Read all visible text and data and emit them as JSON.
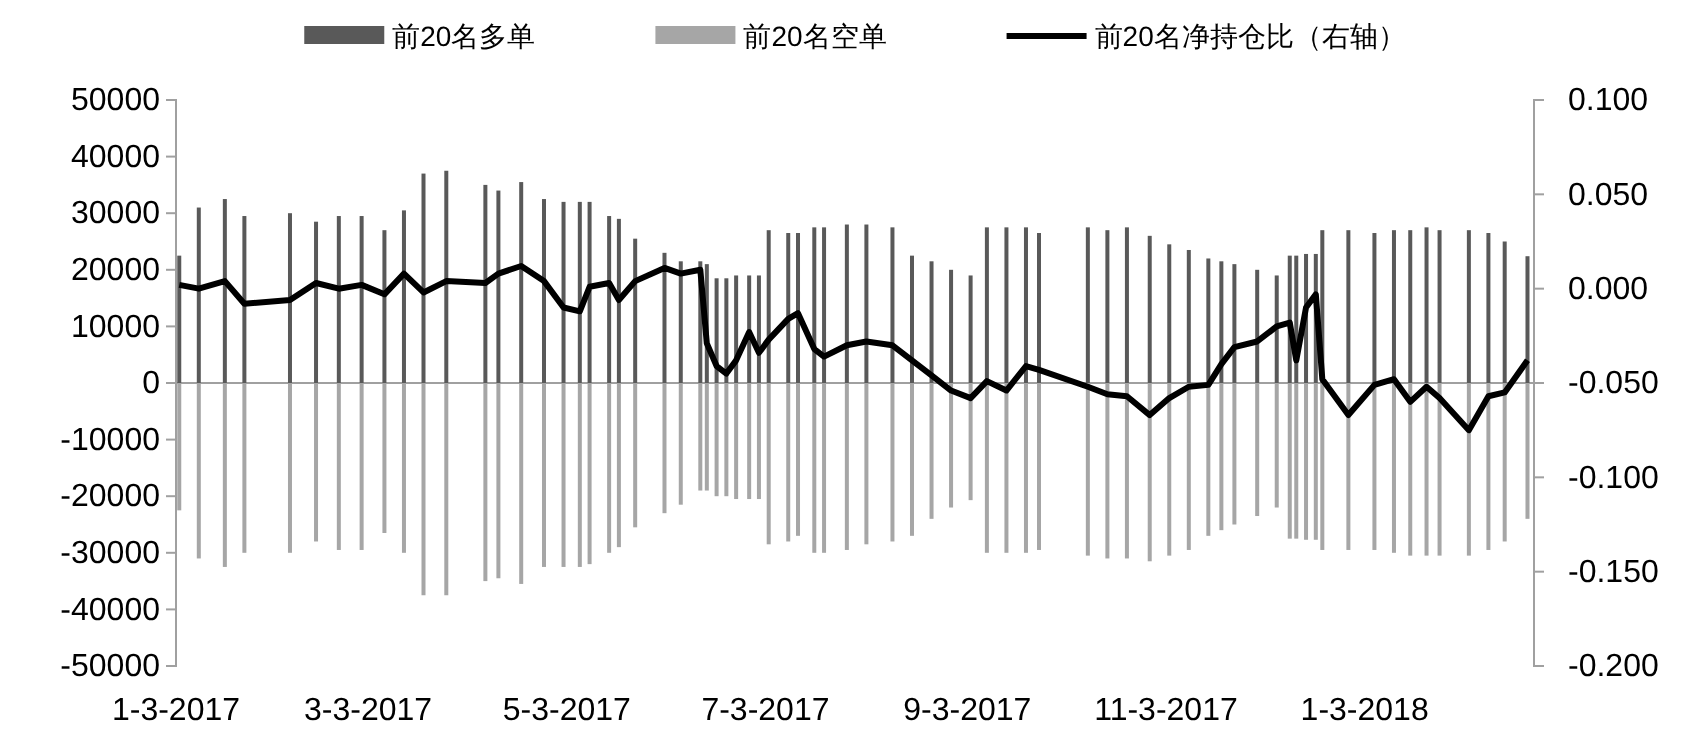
{
  "chart_data": {
    "type": "bar",
    "legend": "top",
    "x": [
      "2017-01-04",
      "2017-01-10",
      "2017-01-18",
      "2017-01-24",
      "2017-02-07",
      "2017-02-15",
      "2017-02-22",
      "2017-03-01",
      "2017-03-08",
      "2017-03-14",
      "2017-03-20",
      "2017-03-27",
      "2017-04-08",
      "2017-04-12",
      "2017-04-19",
      "2017-04-26",
      "2017-05-02",
      "2017-05-07",
      "2017-05-10",
      "2017-05-16",
      "2017-05-19",
      "2017-05-24",
      "2017-06-02",
      "2017-06-07",
      "2017-06-13",
      "2017-06-15",
      "2017-06-18",
      "2017-06-21",
      "2017-06-24",
      "2017-06-28",
      "2017-07-01",
      "2017-07-04",
      "2017-07-10",
      "2017-07-13",
      "2017-07-18",
      "2017-07-21",
      "2017-07-28",
      "2017-08-03",
      "2017-08-11",
      "2017-08-17",
      "2017-08-23",
      "2017-08-29",
      "2017-09-04",
      "2017-09-09",
      "2017-09-15",
      "2017-09-21",
      "2017-09-25",
      "2017-10-10",
      "2017-10-16",
      "2017-10-22",
      "2017-10-29",
      "2017-11-04",
      "2017-11-10",
      "2017-11-16",
      "2017-11-20",
      "2017-11-24",
      "2017-12-01",
      "2017-12-07",
      "2017-12-11",
      "2017-12-13",
      "2017-12-16",
      "2017-12-19",
      "2017-12-21",
      "2017-12-29",
      "2018-01-06",
      "2018-01-12",
      "2018-01-17",
      "2018-01-22",
      "2018-01-26",
      "2018-02-04",
      "2018-02-10",
      "2018-02-15",
      "2018-02-22"
    ],
    "xlim": [
      "2017-01-03",
      "2018-02-24"
    ],
    "xticks": [
      {
        "value": "2017-01-03",
        "label": "1-3-2017"
      },
      {
        "value": "2017-03-03",
        "label": "3-3-2017"
      },
      {
        "value": "2017-05-03",
        "label": "5-3-2017"
      },
      {
        "value": "2017-07-03",
        "label": "7-3-2017"
      },
      {
        "value": "2017-09-03",
        "label": "9-3-2017"
      },
      {
        "value": "2017-11-03",
        "label": "11-3-2017"
      },
      {
        "value": "2018-01-03",
        "label": "1-3-2018"
      }
    ],
    "ylim": [
      -50000,
      50000
    ],
    "yticks": [
      -50000,
      -40000,
      -30000,
      -20000,
      -10000,
      0,
      10000,
      20000,
      30000,
      40000,
      50000
    ],
    "y2lim": [
      -0.2,
      0.1
    ],
    "y2ticks": [
      {
        "value": -0.2,
        "label": "-0.200"
      },
      {
        "value": -0.15,
        "label": "-0.150"
      },
      {
        "value": -0.1,
        "label": "-0.100"
      },
      {
        "value": -0.05,
        "label": "-0.050"
      },
      {
        "value": 0,
        "label": "0.000"
      },
      {
        "value": 0.05,
        "label": "0.050"
      },
      {
        "value": 0.1,
        "label": "0.100"
      }
    ],
    "series": [
      {
        "name": "前20名多单",
        "color": "#595959",
        "values": [
          22500,
          31000,
          32500,
          29500,
          30000,
          28500,
          29500,
          29500,
          27000,
          30500,
          37000,
          37500,
          35000,
          34000,
          35500,
          32500,
          32000,
          32000,
          32000,
          29500,
          29000,
          25500,
          23000,
          21500,
          21500,
          21000,
          18500,
          18500,
          19000,
          19000,
          19000,
          27000,
          26500,
          26500,
          27500,
          27500,
          28000,
          28000,
          27500,
          22500,
          21500,
          20000,
          19000,
          27500,
          27500,
          27500,
          26500,
          27500,
          27000,
          27500,
          26000,
          24500,
          23500,
          22000,
          21500,
          21000,
          20000,
          19000,
          22500,
          22500,
          22800,
          22800,
          27000,
          27000,
          26500,
          27000,
          27000,
          27500,
          27000,
          27000,
          26500,
          25000,
          22400
        ]
      },
      {
        "name": "前20名空单",
        "color": "#a6a6a6",
        "values": [
          -22500,
          -31000,
          -32500,
          -30000,
          -30000,
          -28000,
          -29500,
          -29500,
          -26500,
          -30000,
          -37500,
          -37500,
          -35000,
          -34500,
          -35500,
          -32500,
          -32500,
          -32500,
          -32000,
          -30000,
          -29000,
          -25500,
          -23000,
          -21500,
          -19000,
          -19000,
          -20000,
          -20000,
          -20500,
          -20500,
          -20500,
          -28500,
          -28000,
          -27000,
          -30000,
          -30000,
          -29500,
          -28500,
          -28000,
          -27000,
          -24000,
          -22000,
          -20700,
          -30000,
          -30000,
          -30000,
          -29500,
          -30500,
          -31000,
          -31000,
          -31500,
          -30500,
          -29500,
          -27000,
          -26000,
          -25000,
          -23500,
          -22000,
          -27500,
          -27500,
          -27700,
          -27700,
          -29500,
          -29500,
          -29500,
          -30000,
          -30500,
          -30500,
          -30500,
          -30500,
          -29500,
          -28000,
          -24000
        ]
      },
      {
        "name": "前20名净持仓比（右轴）",
        "type": "line",
        "axis": "y2",
        "color": "#000000",
        "values": [
          0.002,
          0.0,
          0.004,
          -0.008,
          -0.006,
          0.003,
          0.0,
          0.002,
          -0.003,
          0.008,
          -0.002,
          0.004,
          0.003,
          0.008,
          0.012,
          0.004,
          -0.01,
          -0.012,
          0.001,
          0.003,
          -0.006,
          0.004,
          0.011,
          0.008,
          0.01,
          -0.029,
          -0.041,
          -0.045,
          -0.038,
          -0.023,
          -0.034,
          -0.027,
          -0.016,
          -0.013,
          -0.032,
          -0.036,
          -0.03,
          -0.028,
          -0.03,
          -0.038,
          -0.046,
          -0.054,
          -0.058,
          -0.049,
          -0.054,
          -0.041,
          -0.043,
          -0.052,
          -0.056,
          -0.057,
          -0.067,
          -0.058,
          -0.052,
          -0.051,
          -0.04,
          -0.031,
          -0.028,
          -0.02,
          -0.018,
          -0.038,
          -0.01,
          -0.003,
          -0.048,
          -0.067,
          -0.051,
          -0.048,
          -0.06,
          -0.052,
          -0.058,
          -0.075,
          -0.057,
          -0.055,
          -0.038
        ]
      }
    ]
  }
}
